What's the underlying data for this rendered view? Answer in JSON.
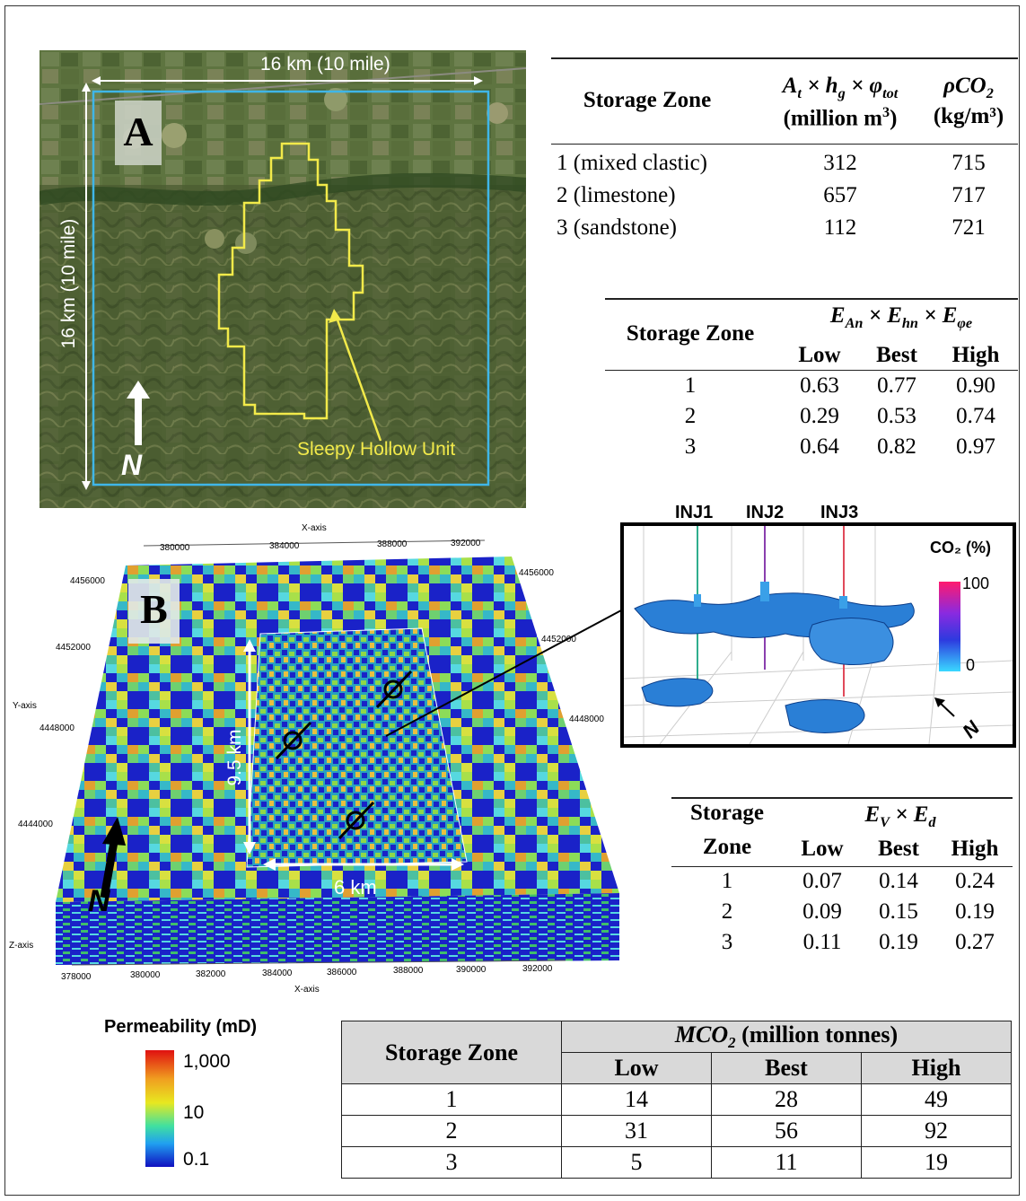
{
  "panel_a": {
    "label": "A",
    "scale_horizontal": "16 km (10 mile)",
    "scale_vertical": "16 km (10 mile)",
    "north_label": "N",
    "unit_label": "Sleepy Hollow Unit"
  },
  "table1": {
    "col_zone": "Storage Zone",
    "col_volume_note": "A_t × h_g × φ_tot (million m³)",
    "col_volume_unit": "(million m³)",
    "col_density_unit": "(kg/m³)",
    "rows": [
      {
        "zone": "1 (mixed clastic)",
        "volume": "312",
        "density": "715"
      },
      {
        "zone": "2 (limestone)",
        "volume": "657",
        "density": "717"
      },
      {
        "zone": "3 (sandstone)",
        "volume": "112",
        "density": "721"
      }
    ]
  },
  "table2": {
    "col_zone": "Storage Zone",
    "group_note": "E_An × E_hn × E_φe",
    "cols": [
      "Low",
      "Best",
      "High"
    ],
    "rows": [
      {
        "zone": "1",
        "low": "0.63",
        "best": "0.77",
        "high": "0.90"
      },
      {
        "zone": "2",
        "low": "0.29",
        "best": "0.53",
        "high": "0.74"
      },
      {
        "zone": "3",
        "low": "0.64",
        "best": "0.82",
        "high": "0.97"
      }
    ]
  },
  "inset": {
    "injectors": [
      "INJ1",
      "INJ2",
      "INJ3"
    ],
    "colorbar_title": "CO₂ (%)",
    "colorbar_max": "100",
    "colorbar_min": "0",
    "north_label": "N"
  },
  "panel_b": {
    "label": "B",
    "x_axis_title": "X-axis",
    "y_axis_title": "Y-axis",
    "z_axis_title": "Z-axis",
    "x_ticks_top": [
      "380000",
      "384000",
      "388000",
      "392000"
    ],
    "x_ticks_bottom": [
      "378000",
      "380000",
      "382000",
      "384000",
      "386000",
      "388000",
      "390000",
      "392000"
    ],
    "y_ticks_left": [
      "4456000",
      "4452000",
      "4448000",
      "4444000"
    ],
    "y_ticks_right": [
      "4456000",
      "4452000",
      "4448000"
    ],
    "dim_vertical": "9.5 km",
    "dim_horizontal": "6 km",
    "north_label": "N"
  },
  "permeability": {
    "title": "Permeability (mD)",
    "ticks": [
      "1,000",
      "10",
      "0.1"
    ]
  },
  "table3": {
    "col_zone_1": "Storage",
    "col_zone_2": "Zone",
    "group_note": "E_V × E_d",
    "cols": [
      "Low",
      "Best",
      "High"
    ],
    "rows": [
      {
        "zone": "1",
        "low": "0.07",
        "best": "0.14",
        "high": "0.24"
      },
      {
        "zone": "2",
        "low": "0.09",
        "best": "0.15",
        "high": "0.19"
      },
      {
        "zone": "3",
        "low": "0.11",
        "best": "0.19",
        "high": "0.27"
      }
    ]
  },
  "table4": {
    "col_zone": "Storage Zone",
    "group_unit": "(million tonnes)",
    "cols": [
      "Low",
      "Best",
      "High"
    ],
    "rows": [
      {
        "zone": "1",
        "low": "14",
        "best": "28",
        "high": "49"
      },
      {
        "zone": "2",
        "low": "31",
        "best": "56",
        "high": "92"
      },
      {
        "zone": "3",
        "low": "5",
        "best": "11",
        "high": "19"
      }
    ]
  },
  "colors": {
    "satellite_bg": "#55693d",
    "study_box": "#3fb6e8",
    "unit_outline": "#f2ea4a",
    "table_header_bg": "#d9d9d9"
  }
}
